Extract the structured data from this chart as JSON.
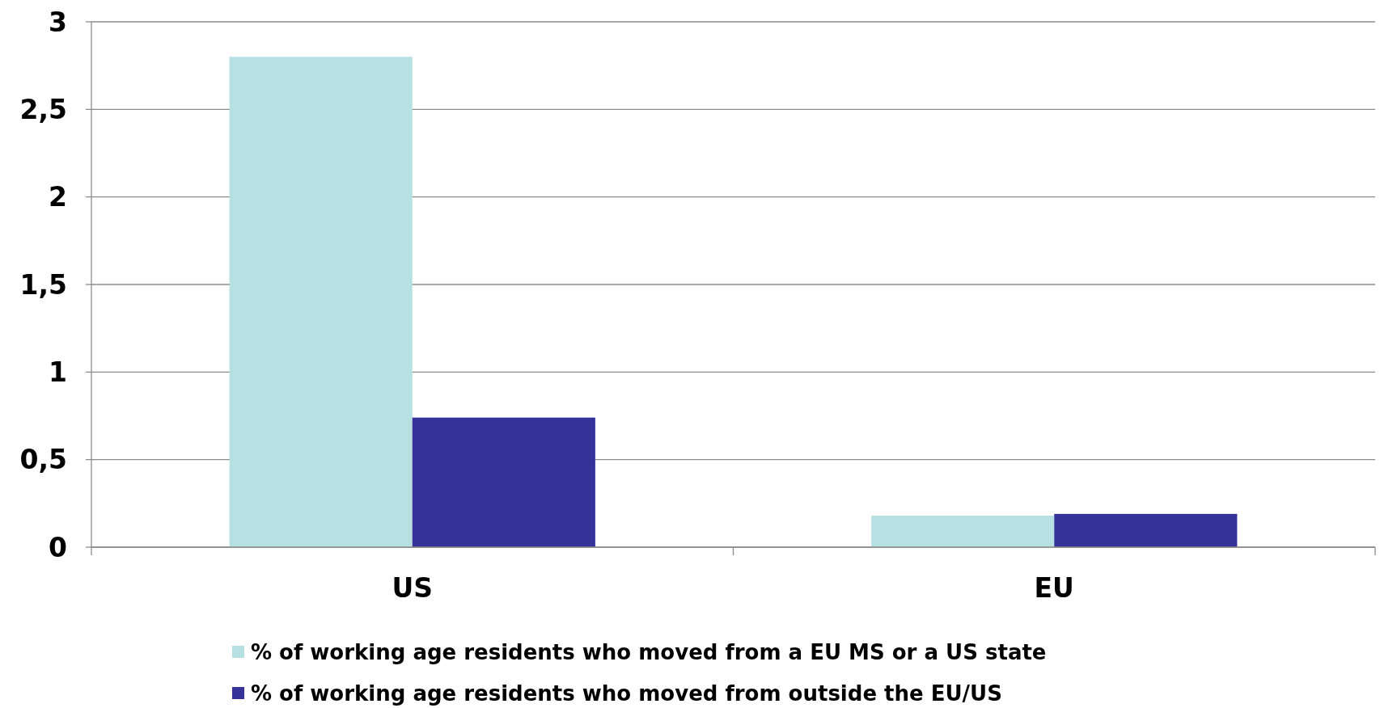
{
  "chart_data": {
    "type": "bar",
    "categories": [
      "US",
      "EU"
    ],
    "series": [
      {
        "name": "% of working age residents who moved from a EU MS or a US state",
        "color": "#b7e0e3",
        "values": [
          2.8,
          0.18
        ]
      },
      {
        "name": "% of working age residents who moved from outside the EU/US",
        "color": "#353399",
        "values": [
          0.74,
          0.19
        ]
      }
    ],
    "ylim": [
      0,
      3
    ],
    "yticks": [
      0,
      {
        "value": 0.5,
        "label": "0,5"
      },
      1,
      {
        "value": 1.5,
        "label": "1,5"
      },
      2,
      {
        "value": 2.5,
        "label": "2,5"
      },
      3
    ],
    "grid": "y",
    "legend": "bottom"
  }
}
